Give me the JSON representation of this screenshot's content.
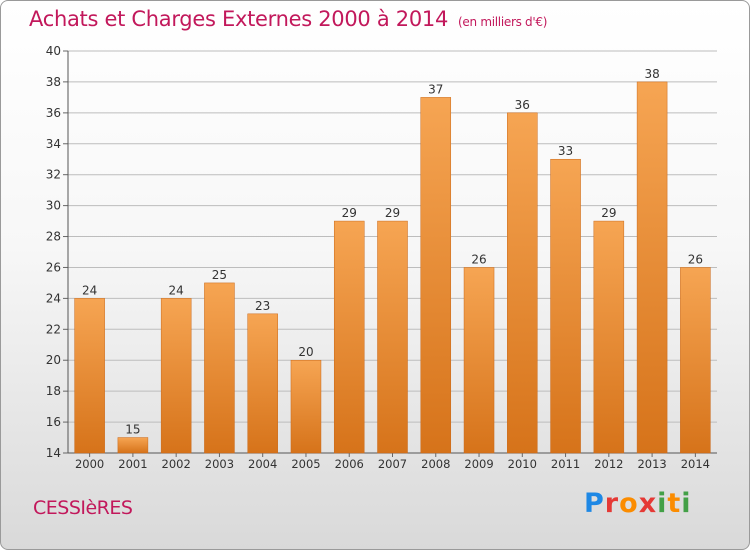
{
  "header": {
    "title": "Achats et Charges Externes 2000 à 2014",
    "unit": "(en milliers d'€)"
  },
  "footer": {
    "town": "CESSIèRES",
    "logo": "Proxiti"
  },
  "colors": {
    "title": "#c2185b",
    "bar_light": "#f6a553",
    "bar_dark": "#d6731a",
    "grid": "#bdbdbd"
  },
  "chart_data": {
    "type": "bar",
    "categories": [
      "2000",
      "2001",
      "2002",
      "2003",
      "2004",
      "2005",
      "2006",
      "2007",
      "2008",
      "2009",
      "2010",
      "2011",
      "2012",
      "2013",
      "2014"
    ],
    "values": [
      24,
      15,
      24,
      25,
      23,
      20,
      29,
      29,
      37,
      26,
      36,
      33,
      29,
      38,
      26
    ],
    "title": "Achats et Charges Externes 2000 à 2014",
    "subtitle": "(en milliers d'€)",
    "xlabel": "",
    "ylabel": "",
    "ylim": [
      14,
      40
    ],
    "yticks": [
      14,
      16,
      18,
      20,
      22,
      24,
      26,
      28,
      30,
      32,
      34,
      36,
      38,
      40
    ],
    "grid": true,
    "data_labels": true
  }
}
